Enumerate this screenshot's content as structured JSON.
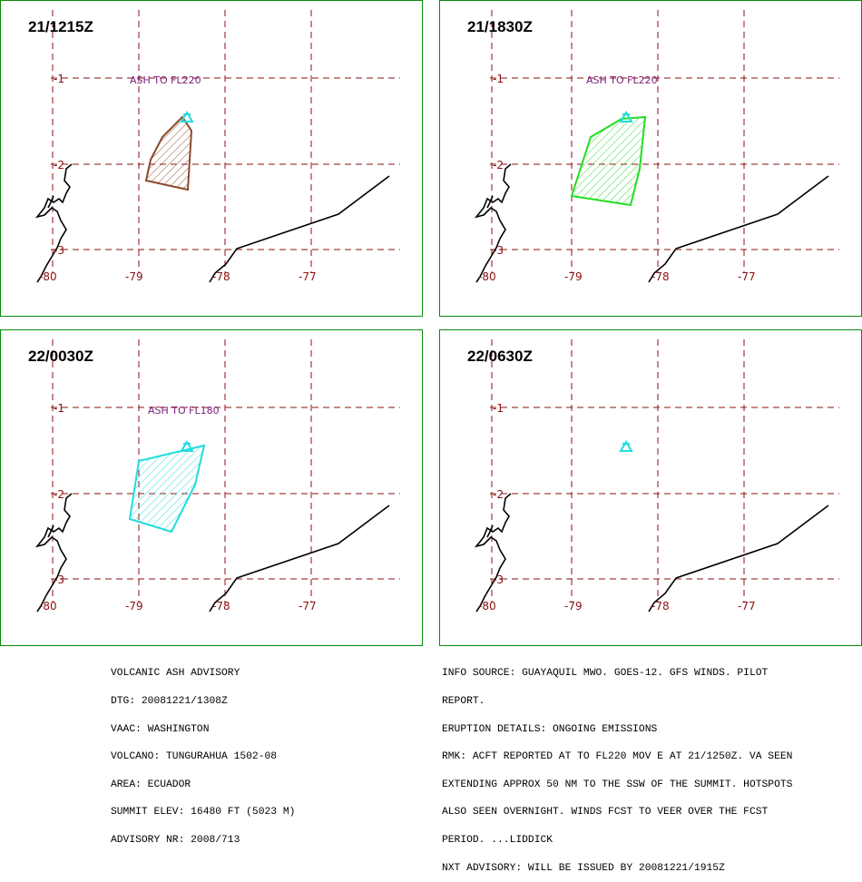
{
  "panels": [
    {
      "time": "21/1215Z",
      "ash_label": "ASH TO FL220",
      "ash_color": "#8b4a2a"
    },
    {
      "time": "21/1830Z",
      "ash_label": "ASH TO FL220",
      "ash_color": "#22dd22"
    },
    {
      "time": "22/0030Z",
      "ash_label": "ASH TO FL180",
      "ash_color": "#22dddd"
    },
    {
      "time": "22/0630Z",
      "ash_label": "",
      "ash_color": ""
    }
  ],
  "axes": {
    "lat_labels": [
      "-1",
      "-2",
      "-3"
    ],
    "lon_labels": [
      "-80",
      "-79",
      "-78",
      "-77"
    ]
  },
  "volcano_marker_color": "#22dddd",
  "grid_color": "#8b1010",
  "advisory_left": [
    "VOLCANIC ASH ADVISORY",
    "DTG: 20081221/1308Z",
    "VAAC: WASHINGTON",
    "VOLCANO: TUNGURAHUA 1502-08",
    "AREA: ECUADOR",
    "SUMMIT ELEV: 16480 FT (5023 M)",
    "ADVISORY NR: 2008/713"
  ],
  "advisory_right": [
    "INFO SOURCE: GUAYAQUIL MWO. GOES-12. GFS WINDS. PILOT",
    "REPORT.",
    "ERUPTION DETAILS: ONGOING EMISSIONS",
    "RMK: ACFT REPORTED AT TO FL220 MOV E AT 21/1250Z. VA SEEN",
    "EXTENDING APPROX 50 NM TO THE SSW OF THE SUMMIT. HOTSPOTS",
    "ALSO SEEN OVERNIGHT. WINDS FCST TO VEER OVER THE FCST",
    "PERIOD. ...LIDDICK",
    "NXT ADVISORY: WILL BE ISSUED BY 20081221/1915Z"
  ]
}
